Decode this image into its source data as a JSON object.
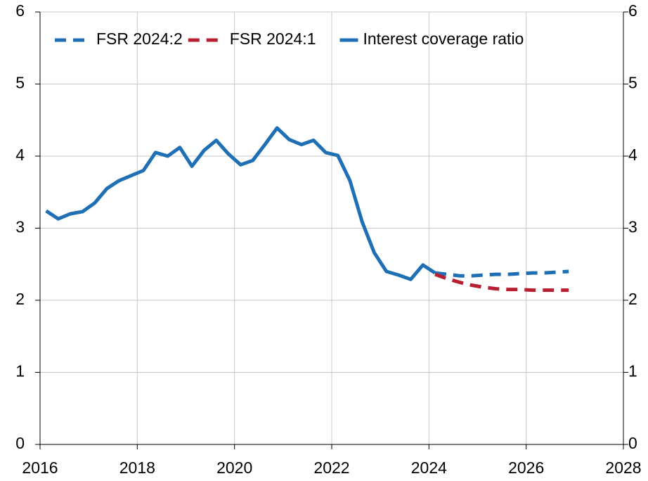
{
  "chart_data": {
    "type": "line",
    "xlim": [
      2016,
      2028
    ],
    "xticks": [
      2016,
      2018,
      2020,
      2022,
      2024,
      2026,
      2028
    ],
    "ylim": [
      0,
      6
    ],
    "yticks": [
      0,
      1,
      2,
      3,
      4,
      5,
      6
    ],
    "grid": true,
    "legend": "top-left",
    "series": [
      {
        "name": "FSR 2024:2",
        "color": "#1f6fb5",
        "dashed": true,
        "x": [
          2024.125,
          2024.375,
          2024.625,
          2024.875,
          2025.125,
          2025.375,
          2025.625,
          2025.875,
          2026.125,
          2026.375,
          2026.625,
          2026.875
        ],
        "values": [
          2.38,
          2.36,
          2.34,
          2.34,
          2.35,
          2.36,
          2.36,
          2.37,
          2.38,
          2.38,
          2.39,
          2.4
        ]
      },
      {
        "name": "FSR 2024:1",
        "color": "#b81f30",
        "dashed": true,
        "x": [
          2024.125,
          2024.375,
          2024.625,
          2024.875,
          2025.125,
          2025.375,
          2025.625,
          2025.875,
          2026.125,
          2026.375,
          2026.625,
          2026.875
        ],
        "values": [
          2.36,
          2.3,
          2.25,
          2.21,
          2.18,
          2.16,
          2.15,
          2.15,
          2.14,
          2.14,
          2.14,
          2.14
        ]
      },
      {
        "name": "Interest coverage ratio",
        "color": "#1f6fb5",
        "dashed": false,
        "x": [
          2016.125,
          2016.375,
          2016.625,
          2016.875,
          2017.125,
          2017.375,
          2017.625,
          2017.875,
          2018.125,
          2018.375,
          2018.625,
          2018.875,
          2019.125,
          2019.375,
          2019.625,
          2019.875,
          2020.125,
          2020.375,
          2020.625,
          2020.875,
          2021.125,
          2021.375,
          2021.625,
          2021.875,
          2022.125,
          2022.375,
          2022.625,
          2022.875,
          2023.125,
          2023.375,
          2023.625,
          2023.875,
          2024.125
        ],
        "values": [
          3.24,
          3.13,
          3.2,
          3.23,
          3.35,
          3.55,
          3.66,
          3.73,
          3.8,
          4.05,
          4.0,
          4.12,
          3.86,
          4.08,
          4.22,
          4.03,
          3.88,
          3.94,
          4.16,
          4.39,
          4.23,
          4.16,
          4.22,
          4.05,
          4.01,
          3.66,
          3.09,
          2.66,
          2.4,
          2.35,
          2.29,
          2.49,
          2.38
        ]
      }
    ]
  }
}
